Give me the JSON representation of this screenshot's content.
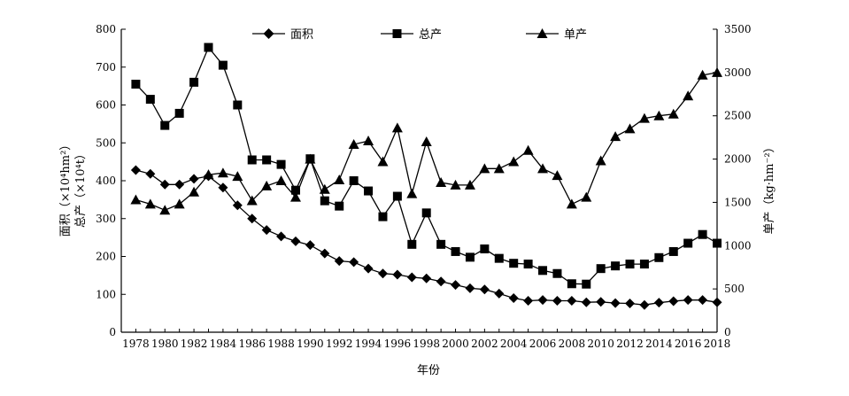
{
  "chart_data": {
    "type": "line",
    "title": "",
    "xlabel": "年份",
    "ylabel_left_line1": "面积（×10⁴hm²）",
    "ylabel_left_line2": "总产（×10⁴t）",
    "ylabel_right": "单产（kg·hm⁻²）",
    "x": [
      1978,
      1979,
      1980,
      1981,
      1982,
      1983,
      1984,
      1985,
      1986,
      1987,
      1988,
      1989,
      1990,
      1991,
      1992,
      1993,
      1994,
      1995,
      1996,
      1997,
      1998,
      1999,
      2000,
      2001,
      2002,
      2003,
      2004,
      2005,
      2006,
      2007,
      2008,
      2009,
      2010,
      2011,
      2012,
      2013,
      2014,
      2015,
      2016,
      2017,
      2018
    ],
    "xlim": [
      1977,
      2018
    ],
    "xticks": [
      1978,
      1980,
      1982,
      1984,
      1986,
      1988,
      1990,
      1992,
      1994,
      1996,
      1998,
      2000,
      2002,
      2004,
      2006,
      2008,
      2010,
      2012,
      2014,
      2016,
      2018
    ],
    "ylim_left": [
      0,
      800
    ],
    "yticks_left": [
      0,
      100,
      200,
      300,
      400,
      500,
      600,
      700,
      800
    ],
    "ylim_right": [
      0,
      3500
    ],
    "yticks_right": [
      0,
      500,
      1000,
      1500,
      2000,
      2500,
      3000,
      3500
    ],
    "series": [
      {
        "name": "面积",
        "axis": "left",
        "marker": "diamond",
        "values": [
          428,
          418,
          390,
          390,
          405,
          412,
          382,
          335,
          300,
          270,
          253,
          240,
          230,
          208,
          188,
          185,
          168,
          155,
          152,
          145,
          142,
          134,
          125,
          116,
          113,
          102,
          90,
          83,
          85,
          83,
          83,
          79,
          80,
          77,
          76,
          72,
          78,
          82,
          85,
          85,
          79
        ]
      },
      {
        "name": "总产",
        "axis": "left",
        "marker": "square",
        "values": [
          655,
          615,
          546,
          578,
          660,
          752,
          705,
          600,
          455,
          455,
          443,
          375,
          458,
          347,
          333,
          400,
          373,
          305,
          359,
          232,
          315,
          232,
          213,
          198,
          220,
          195,
          182,
          180,
          163,
          155,
          128,
          127,
          168,
          175,
          180,
          180,
          197,
          213,
          235,
          258,
          235
        ]
      },
      {
        "name": "单产",
        "axis": "right",
        "marker": "triangle",
        "values": [
          1530,
          1480,
          1410,
          1480,
          1620,
          1820,
          1840,
          1800,
          1520,
          1690,
          1750,
          1560,
          2000,
          1650,
          1760,
          2170,
          2210,
          1970,
          2360,
          1600,
          2200,
          1730,
          1700,
          1700,
          1890,
          1890,
          1970,
          2100,
          1890,
          1810,
          1480,
          1560,
          1980,
          2260,
          2350,
          2470,
          2500,
          2520,
          2730,
          2970,
          3000
        ]
      }
    ],
    "legend_position": "top"
  }
}
